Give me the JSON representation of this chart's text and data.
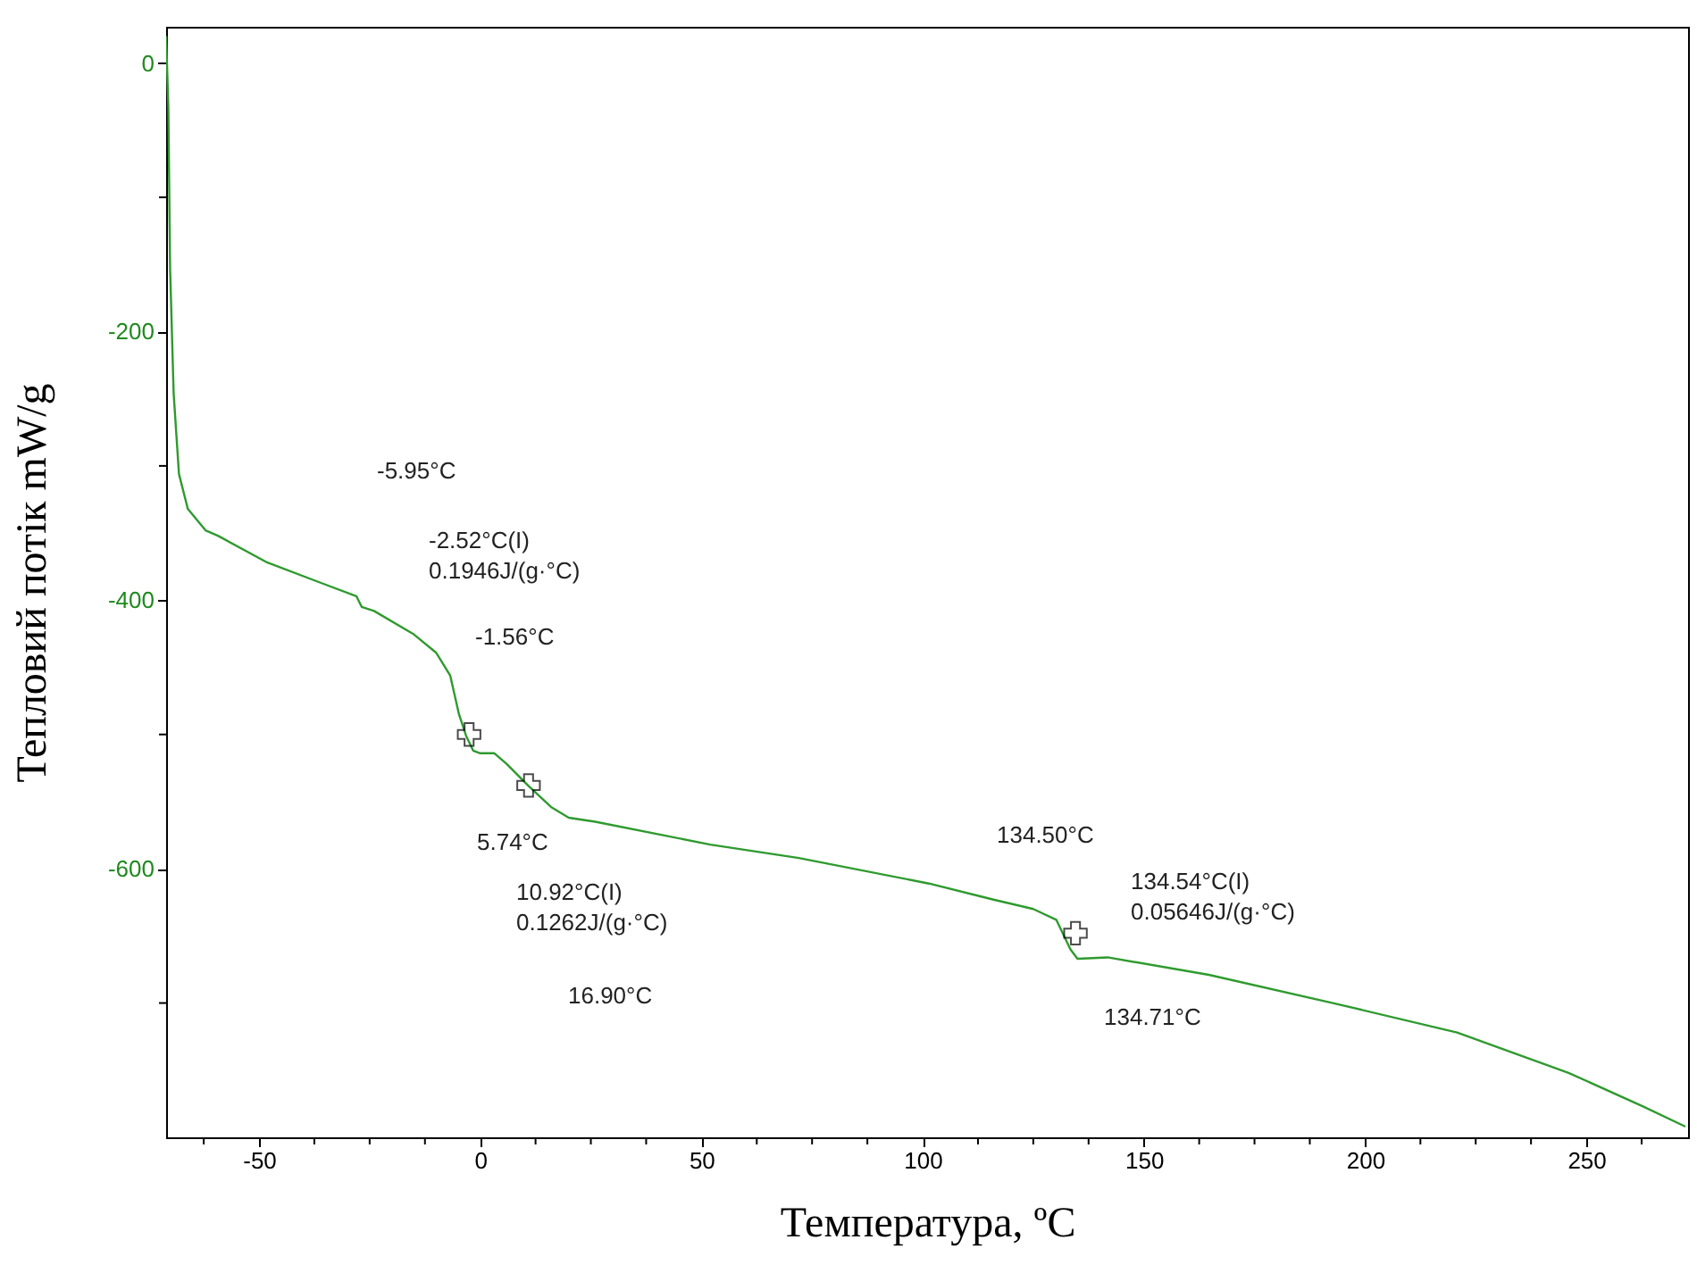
{
  "chart_data": {
    "type": "line",
    "xlabel": "Температура, ºC",
    "ylabel": "Тепловий потік mW/g",
    "xlim": [
      -71,
      273
    ],
    "ylim": [
      -800,
      27
    ],
    "xticks": [
      {
        "value": -62.5,
        "label": null
      },
      -50,
      {
        "value": -37.5,
        "label": null
      },
      {
        "value": -25,
        "label": null
      },
      {
        "value": -12.5,
        "label": null
      },
      0,
      {
        "value": 12.5,
        "label": null
      },
      {
        "value": 25,
        "label": null
      },
      {
        "value": 37.5,
        "label": null
      },
      50,
      {
        "value": 62.5,
        "label": null
      },
      {
        "value": 75,
        "label": null
      },
      {
        "value": 87.5,
        "label": null
      },
      100,
      {
        "value": 112.5,
        "label": null
      },
      {
        "value": 125,
        "label": null
      },
      {
        "value": 137.5,
        "label": null
      },
      150,
      {
        "value": 162.5,
        "label": null
      },
      {
        "value": 175,
        "label": null
      },
      {
        "value": 187.5,
        "label": null
      },
      200,
      {
        "value": 212.5,
        "label": null
      },
      {
        "value": 225,
        "label": null
      },
      {
        "value": 237.5,
        "label": null
      },
      250,
      {
        "value": 262.5,
        "label": null
      }
    ],
    "yticks": [
      0,
      {
        "value": -100,
        "label": null
      },
      -200,
      {
        "value": -300,
        "label": null
      },
      -400,
      {
        "value": -500,
        "label": null
      },
      -600,
      {
        "value": -700,
        "label": null
      }
    ],
    "grid": false,
    "line_style": "solid",
    "marker": "none",
    "series": [
      {
        "type": "line",
        "color": "#2e9a2e",
        "x": [
          -71,
          -70.5,
          -70.1,
          -69.3,
          -68.1,
          -66.1,
          -62.1,
          -59.3,
          -48.1,
          -36.1,
          -28,
          -26.8,
          -24,
          -15.2,
          -10,
          -6.8,
          -4.8,
          -3.2,
          -1.6,
          0,
          3.2,
          6,
          10.8,
          16,
          20,
          26,
          52,
          72,
          101.4,
          116,
          125,
          130.2,
          133.4,
          135,
          141.8,
          164.7,
          192.7,
          220.8,
          246,
          262.8,
          272.4
        ],
        "values": [
          20,
          -33,
          -153,
          -246,
          -306,
          -332,
          -348,
          -352,
          -372,
          -387,
          -397,
          -405,
          -408,
          -425,
          -439,
          -456,
          -485,
          -501,
          -512,
          -514,
          -514,
          -522,
          -538,
          -554,
          -562,
          -565,
          -582,
          -592,
          -611,
          -623,
          -630,
          -638,
          -660,
          -667,
          -666,
          -679,
          -700,
          -722,
          -752,
          -777,
          -792
        ]
      },
      {
        "type": "scatter",
        "marker": "cross",
        "color": "#000000",
        "x": [
          -2.52,
          10.92,
          134.54
        ],
        "values": [
          -500,
          -538,
          -648
        ]
      }
    ],
    "annotations": [
      "-5.95°C",
      "-2.52°C(I)\n0.1946J/(g·°C)",
      "-1.56°C",
      "5.74°C",
      "10.92°C(I)\n0.1262J/(g·°C)",
      "16.90°C",
      "134.50°C",
      "134.54°C(I)\n0.05646J/(g·°C)",
      "134.71°C"
    ]
  }
}
